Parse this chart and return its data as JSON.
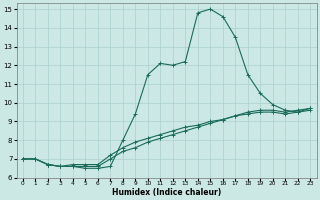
{
  "xlabel": "Humidex (Indice chaleur)",
  "bg_color": "#cce8e4",
  "grid_color": "#aad0cc",
  "line_color": "#1a6b5a",
  "xlim": [
    -0.5,
    23.5
  ],
  "ylim": [
    6,
    15.3
  ],
  "xticks": [
    0,
    1,
    2,
    3,
    4,
    5,
    6,
    7,
    8,
    9,
    10,
    11,
    12,
    13,
    14,
    15,
    16,
    17,
    18,
    19,
    20,
    21,
    22,
    23
  ],
  "yticks": [
    6,
    7,
    8,
    9,
    10,
    11,
    12,
    13,
    14,
    15
  ],
  "line1_x": [
    0,
    1,
    2,
    3,
    4,
    5,
    6,
    7,
    8,
    9,
    10,
    11,
    12,
    13,
    14,
    15,
    16,
    17,
    18,
    19,
    20,
    21,
    22,
    23
  ],
  "line1_y": [
    7.0,
    7.0,
    6.7,
    6.6,
    6.6,
    6.5,
    6.5,
    6.6,
    8.0,
    9.4,
    11.5,
    12.1,
    12.0,
    12.2,
    14.8,
    15.0,
    14.6,
    13.5,
    11.5,
    10.5,
    9.9,
    9.6,
    9.5,
    9.7
  ],
  "line2_x": [
    0,
    1,
    2,
    3,
    4,
    5,
    6,
    7,
    8,
    9,
    10,
    11,
    12,
    13,
    14,
    15,
    16,
    17,
    18,
    19,
    20,
    21,
    22,
    23
  ],
  "line2_y": [
    7.0,
    7.0,
    6.7,
    6.6,
    6.6,
    6.6,
    6.6,
    7.0,
    7.4,
    7.6,
    7.9,
    8.1,
    8.3,
    8.5,
    8.7,
    8.9,
    9.1,
    9.3,
    9.5,
    9.6,
    9.6,
    9.5,
    9.6,
    9.7
  ],
  "line3_x": [
    0,
    1,
    2,
    3,
    4,
    5,
    6,
    7,
    8,
    9,
    10,
    11,
    12,
    13,
    14,
    15,
    16,
    17,
    18,
    19,
    20,
    21,
    22,
    23
  ],
  "line3_y": [
    7.0,
    7.0,
    6.7,
    6.6,
    6.7,
    6.7,
    6.7,
    7.2,
    7.6,
    7.9,
    8.1,
    8.3,
    8.5,
    8.7,
    8.8,
    9.0,
    9.1,
    9.3,
    9.4,
    9.5,
    9.5,
    9.4,
    9.5,
    9.6
  ]
}
